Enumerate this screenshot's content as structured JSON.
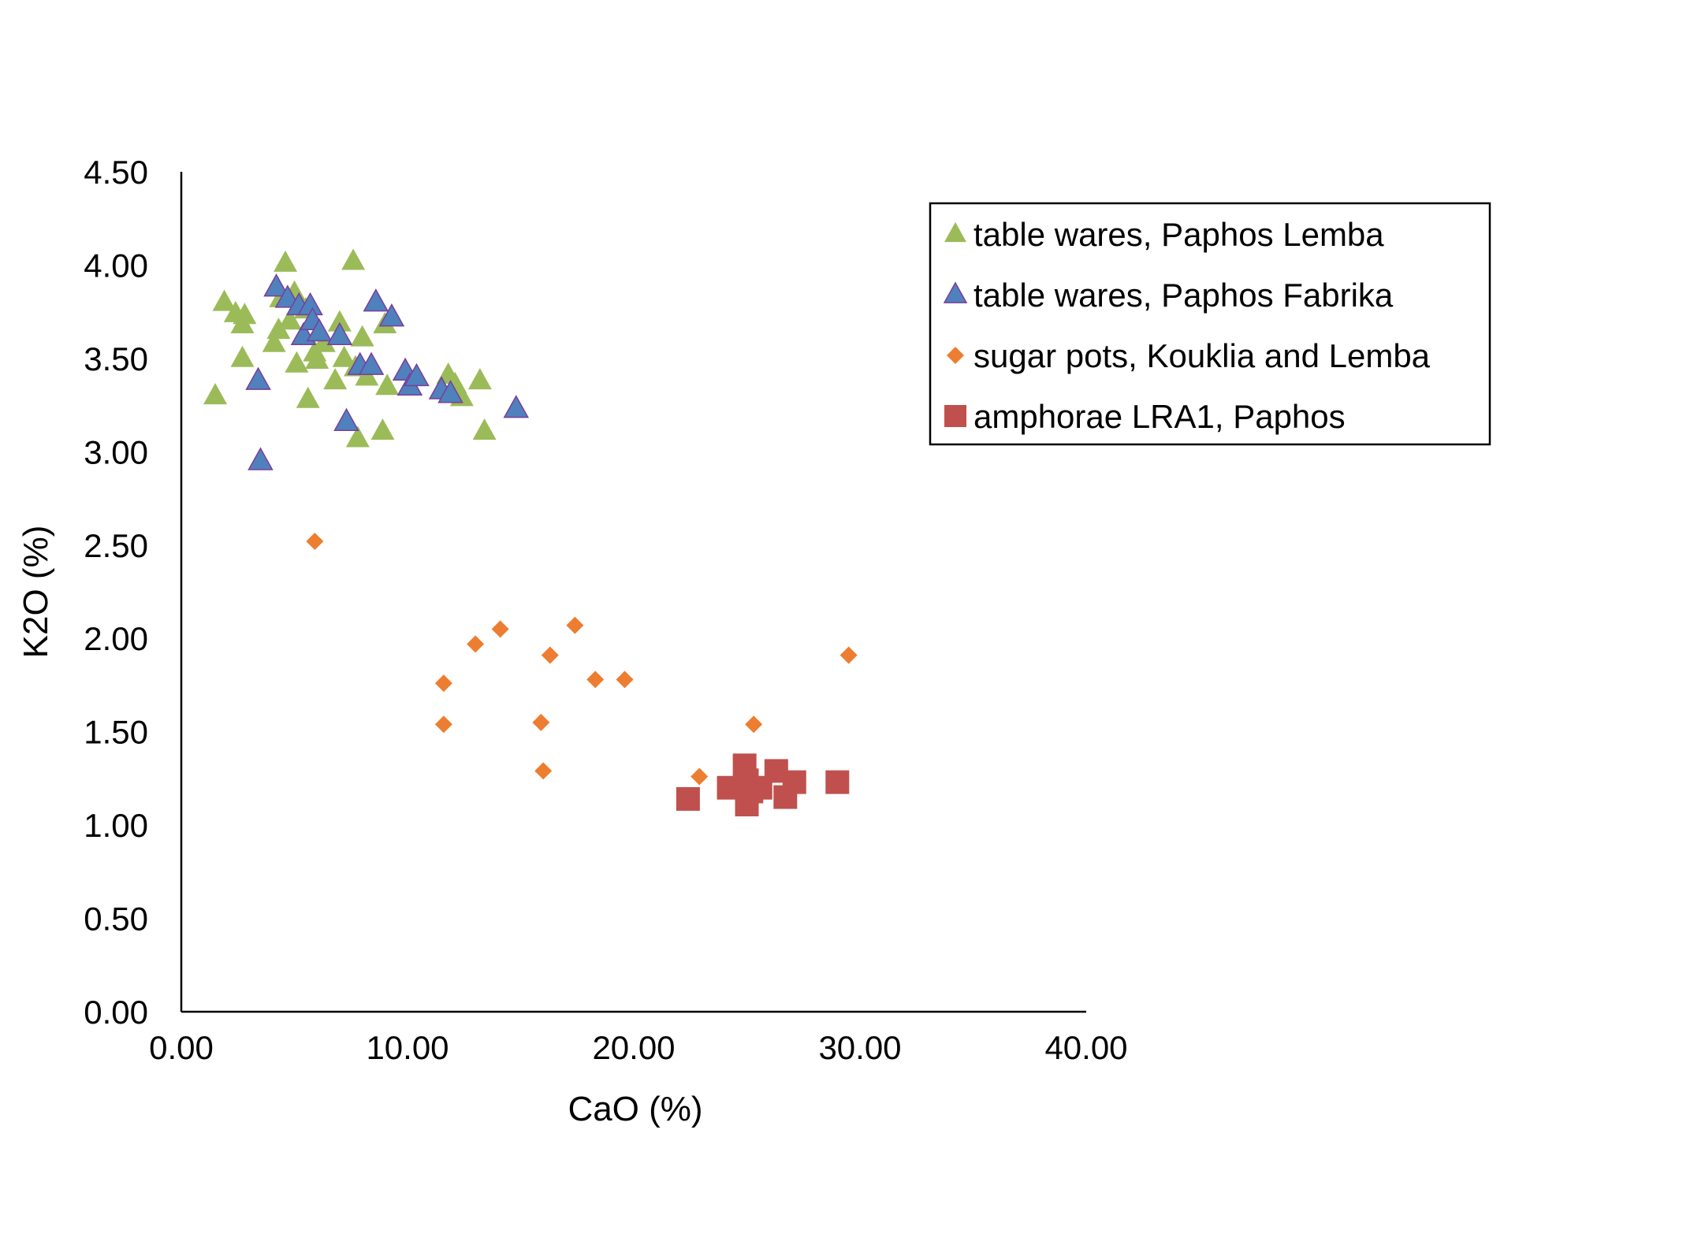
{
  "chart_data": {
    "type": "scatter",
    "xlabel": "CaO (%)",
    "ylabel": "K2O (%)",
    "xlim": [
      0,
      40
    ],
    "ylim": [
      0,
      4.5
    ],
    "x_ticks": [
      "0.00",
      "10.00",
      "20.00",
      "30.00",
      "40.00"
    ],
    "y_ticks": [
      "0.00",
      "0.50",
      "1.00",
      "1.50",
      "2.00",
      "2.50",
      "3.00",
      "3.50",
      "4.00",
      "4.50"
    ],
    "grid": false,
    "legend_position": "top-right",
    "series": [
      {
        "name": "table wares, Paphos Lemba",
        "marker": "triangle",
        "color": "#9BBB59",
        "points": [
          [
            1.5,
            3.3
          ],
          [
            1.9,
            3.8
          ],
          [
            2.4,
            3.74
          ],
          [
            2.7,
            3.68
          ],
          [
            2.8,
            3.73
          ],
          [
            2.7,
            3.5
          ],
          [
            4.1,
            3.58
          ],
          [
            4.3,
            3.65
          ],
          [
            4.4,
            3.82
          ],
          [
            4.6,
            4.01
          ],
          [
            4.8,
            3.7
          ],
          [
            5.0,
            3.85
          ],
          [
            5.1,
            3.47
          ],
          [
            5.5,
            3.76
          ],
          [
            5.6,
            3.28
          ],
          [
            5.9,
            3.53
          ],
          [
            6.0,
            3.49
          ],
          [
            6.3,
            3.58
          ],
          [
            6.8,
            3.38
          ],
          [
            7.0,
            3.69
          ],
          [
            7.2,
            3.5
          ],
          [
            7.6,
            4.02
          ],
          [
            7.7,
            3.45
          ],
          [
            7.8,
            3.07
          ],
          [
            8.0,
            3.61
          ],
          [
            8.2,
            3.4
          ],
          [
            8.9,
            3.11
          ],
          [
            9.0,
            3.68
          ],
          [
            9.1,
            3.35
          ],
          [
            11.8,
            3.41
          ],
          [
            12.1,
            3.36
          ],
          [
            12.4,
            3.29
          ],
          [
            13.2,
            3.38
          ],
          [
            13.4,
            3.11
          ]
        ]
      },
      {
        "name": "table wares, Paphos Fabrika",
        "marker": "triangle",
        "color": "#4F81BD",
        "points": [
          [
            3.4,
            3.38
          ],
          [
            3.5,
            2.95
          ],
          [
            4.2,
            3.88
          ],
          [
            4.7,
            3.82
          ],
          [
            5.2,
            3.78
          ],
          [
            5.4,
            3.62
          ],
          [
            5.7,
            3.78
          ],
          [
            5.8,
            3.7
          ],
          [
            6.1,
            3.64
          ],
          [
            7.0,
            3.62
          ],
          [
            7.3,
            3.16
          ],
          [
            7.9,
            3.46
          ],
          [
            8.4,
            3.46
          ],
          [
            8.6,
            3.8
          ],
          [
            9.3,
            3.72
          ],
          [
            9.9,
            3.43
          ],
          [
            10.1,
            3.35
          ],
          [
            10.4,
            3.4
          ],
          [
            11.5,
            3.33
          ],
          [
            11.9,
            3.31
          ],
          [
            14.8,
            3.23
          ]
        ]
      },
      {
        "name": "sugar pots, Kouklia and Lemba",
        "marker": "diamond",
        "color": "#ED7D31",
        "points": [
          [
            5.9,
            2.52
          ],
          [
            11.6,
            1.76
          ],
          [
            11.6,
            1.54
          ],
          [
            13.0,
            1.97
          ],
          [
            14.1,
            2.05
          ],
          [
            15.9,
            1.55
          ],
          [
            16.0,
            1.29
          ],
          [
            16.3,
            1.91
          ],
          [
            17.4,
            2.07
          ],
          [
            18.3,
            1.78
          ],
          [
            19.6,
            1.78
          ],
          [
            22.9,
            1.26
          ],
          [
            25.3,
            1.54
          ],
          [
            29.5,
            1.91
          ]
        ]
      },
      {
        "name": "amphorae LRA1, Paphos",
        "marker": "square",
        "color": "#C0504D",
        "points": [
          [
            22.4,
            1.14
          ],
          [
            24.2,
            1.2
          ],
          [
            24.9,
            1.32
          ],
          [
            25.0,
            1.24
          ],
          [
            25.0,
            1.11
          ],
          [
            25.2,
            1.18
          ],
          [
            25.6,
            1.2
          ],
          [
            26.3,
            1.29
          ],
          [
            26.7,
            1.15
          ],
          [
            27.1,
            1.23
          ],
          [
            29.0,
            1.23
          ]
        ]
      }
    ]
  }
}
